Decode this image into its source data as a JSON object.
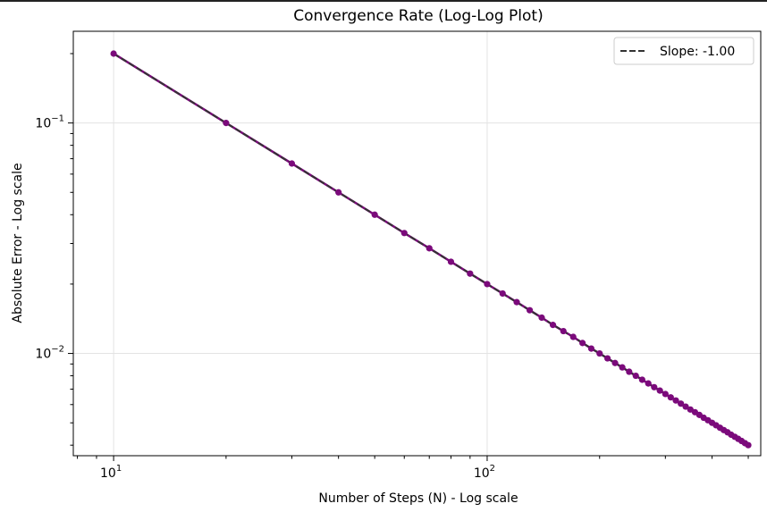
{
  "chart_data": {
    "type": "line",
    "title": "Convergence Rate (Log-Log Plot)",
    "xlabel": "Number of Steps (N) - Log scale",
    "ylabel": "Absolute Error - Log scale",
    "x_scale": "log",
    "y_scale": "log",
    "xlim": [
      7.8,
      540
    ],
    "ylim": [
      0.0036,
      0.25
    ],
    "x_ticks": [
      {
        "value": 10,
        "base": "10",
        "exp": "1"
      },
      {
        "value": 100,
        "base": "10",
        "exp": "2"
      }
    ],
    "y_ticks": [
      {
        "value": 0.1,
        "base": "10",
        "exp": "−1"
      },
      {
        "value": 0.01,
        "base": "10",
        "exp": "−2"
      }
    ],
    "grid": true,
    "legend_position": "top-right",
    "series": [
      {
        "style": "line+markers",
        "color": "#7b0a7b",
        "x": [
          10,
          20,
          30,
          40,
          50,
          60,
          70,
          80,
          90,
          100,
          110,
          120,
          130,
          140,
          150,
          160,
          170,
          180,
          190,
          200,
          210,
          220,
          230,
          240,
          250,
          260,
          270,
          280,
          290,
          300,
          310,
          320,
          330,
          340,
          350,
          360,
          370,
          380,
          390,
          400,
          410,
          420,
          430,
          440,
          450,
          460,
          470,
          480,
          490,
          500
        ],
        "y": [
          0.2,
          0.1,
          0.0667,
          0.05,
          0.04,
          0.0333,
          0.0286,
          0.025,
          0.0222,
          0.02,
          0.0182,
          0.0167,
          0.0154,
          0.0143,
          0.0133,
          0.0125,
          0.0118,
          0.0111,
          0.0105,
          0.01,
          0.00952,
          0.00909,
          0.0087,
          0.00833,
          0.008,
          0.00769,
          0.00741,
          0.00714,
          0.0069,
          0.00667,
          0.00645,
          0.00625,
          0.00606,
          0.00588,
          0.00571,
          0.00556,
          0.00541,
          0.00526,
          0.00513,
          0.005,
          0.00488,
          0.00476,
          0.00465,
          0.00455,
          0.00444,
          0.00435,
          0.00426,
          0.00417,
          0.00408,
          0.004
        ]
      },
      {
        "name": "Slope: -1.00",
        "style": "dashed",
        "color": "#333333",
        "x": [
          10,
          500
        ],
        "y": [
          0.2,
          0.004
        ]
      }
    ]
  }
}
